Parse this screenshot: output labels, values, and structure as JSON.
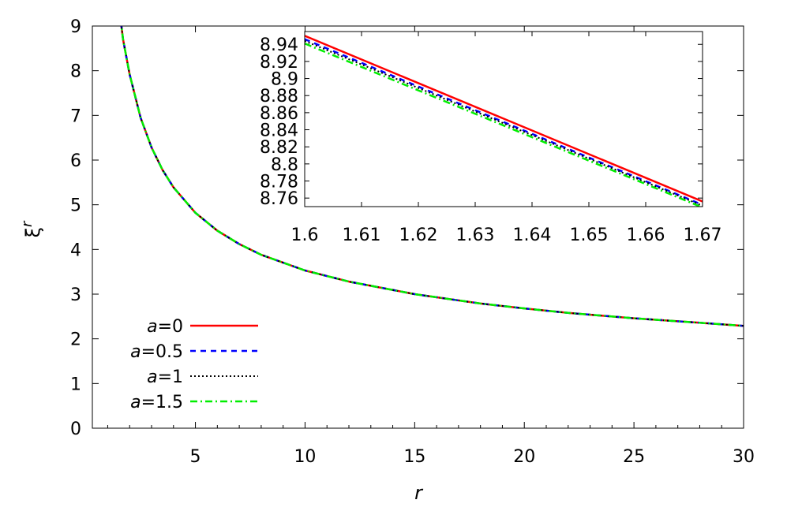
{
  "chart_data": [
    {
      "type": "line",
      "panel": "main",
      "xlabel": "r",
      "ylabel": "ξr",
      "ylabel_base": "ξ",
      "ylabel_sup": "r",
      "xlim": [
        0.3,
        30
      ],
      "ylim": [
        0,
        9
      ],
      "xticks": [
        5,
        10,
        15,
        20,
        25,
        30
      ],
      "xtick_labels": [
        "5",
        "10",
        "15",
        "20",
        "25",
        "30"
      ],
      "yticks": [
        0,
        1,
        2,
        3,
        4,
        5,
        6,
        7,
        8,
        9
      ],
      "ytick_labels": [
        "0",
        "1",
        "2",
        "3",
        "4",
        "5",
        "6",
        "7",
        "8",
        "9"
      ],
      "legend_position": "bottom-left",
      "series": [
        {
          "name": "a=0",
          "label_var": "a",
          "label_val": "=0",
          "color": "#ff0000",
          "style": "solid",
          "x": [
            1.5,
            1.7,
            2.0,
            2.5,
            3.0,
            3.5,
            4.0,
            5.0,
            6.0,
            7.0,
            8.0,
            10.0,
            12.0,
            15.0,
            18.0,
            20.0,
            22.0,
            25.0,
            28.0,
            30.0
          ],
          "y": [
            9.5,
            8.7,
            7.92,
            6.95,
            6.28,
            5.78,
            5.39,
            4.82,
            4.42,
            4.12,
            3.88,
            3.53,
            3.28,
            3.0,
            2.79,
            2.68,
            2.58,
            2.46,
            2.36,
            2.29
          ]
        },
        {
          "name": "a=0.5",
          "label_var": "a",
          "label_val": "=0.5",
          "color": "#0000ff",
          "style": "dashed",
          "x": [
            1.5,
            1.7,
            2.0,
            2.5,
            3.0,
            3.5,
            4.0,
            5.0,
            6.0,
            7.0,
            8.0,
            10.0,
            12.0,
            15.0,
            18.0,
            20.0,
            22.0,
            25.0,
            28.0,
            30.0
          ],
          "y": [
            9.5,
            8.7,
            7.92,
            6.95,
            6.28,
            5.78,
            5.39,
            4.82,
            4.42,
            4.12,
            3.88,
            3.53,
            3.28,
            3.0,
            2.79,
            2.68,
            2.58,
            2.46,
            2.36,
            2.29
          ]
        },
        {
          "name": "a=1",
          "label_var": "a",
          "label_val": "=1",
          "color": "#000000",
          "style": "dotted",
          "x": [
            1.5,
            1.7,
            2.0,
            2.5,
            3.0,
            3.5,
            4.0,
            5.0,
            6.0,
            7.0,
            8.0,
            10.0,
            12.0,
            15.0,
            18.0,
            20.0,
            22.0,
            25.0,
            28.0,
            30.0
          ],
          "y": [
            9.5,
            8.7,
            7.92,
            6.95,
            6.28,
            5.78,
            5.39,
            4.82,
            4.42,
            4.12,
            3.88,
            3.53,
            3.28,
            3.0,
            2.79,
            2.68,
            2.58,
            2.46,
            2.36,
            2.29
          ]
        },
        {
          "name": "a=1.5",
          "label_var": "a",
          "label_val": "=1.5",
          "color": "#00ee00",
          "style": "dashdot",
          "x": [
            1.5,
            1.7,
            2.0,
            2.5,
            3.0,
            3.5,
            4.0,
            5.0,
            6.0,
            7.0,
            8.0,
            10.0,
            12.0,
            15.0,
            18.0,
            20.0,
            22.0,
            25.0,
            28.0,
            30.0
          ],
          "y": [
            9.5,
            8.7,
            7.92,
            6.95,
            6.28,
            5.78,
            5.39,
            4.82,
            4.42,
            4.12,
            3.88,
            3.53,
            3.28,
            3.0,
            2.79,
            2.68,
            2.58,
            2.46,
            2.36,
            2.29
          ]
        }
      ]
    },
    {
      "type": "line",
      "panel": "inset",
      "xlim": [
        1.6,
        1.67
      ],
      "ylim": [
        8.75,
        8.955
      ],
      "xticks": [
        1.6,
        1.61,
        1.62,
        1.63,
        1.64,
        1.65,
        1.66,
        1.67
      ],
      "xtick_labels": [
        "1.6",
        "1.61",
        "1.62",
        "1.63",
        "1.64",
        "1.65",
        "1.66",
        "1.67"
      ],
      "yticks": [
        8.76,
        8.78,
        8.8,
        8.82,
        8.84,
        8.86,
        8.88,
        8.9,
        8.92,
        8.94
      ],
      "ytick_labels": [
        "8.76",
        "8.78",
        "8.8",
        "8.82",
        "8.84",
        "8.86",
        "8.88",
        "8.9",
        "8.92",
        "8.94"
      ],
      "series": [
        {
          "name": "a=0",
          "color": "#ff0000",
          "style": "solid",
          "x": [
            1.6,
            1.67
          ],
          "y": [
            8.95,
            8.756
          ]
        },
        {
          "name": "a=0.5",
          "color": "#0000ff",
          "style": "dashed",
          "x": [
            1.6,
            1.67
          ],
          "y": [
            8.946,
            8.752
          ]
        },
        {
          "name": "a=1",
          "color": "#000000",
          "style": "dotted",
          "x": [
            1.6,
            1.67
          ],
          "y": [
            8.944,
            8.751
          ]
        },
        {
          "name": "a=1.5",
          "color": "#00ee00",
          "style": "dashdot",
          "x": [
            1.6,
            1.67
          ],
          "y": [
            8.941,
            8.749
          ]
        }
      ]
    }
  ]
}
